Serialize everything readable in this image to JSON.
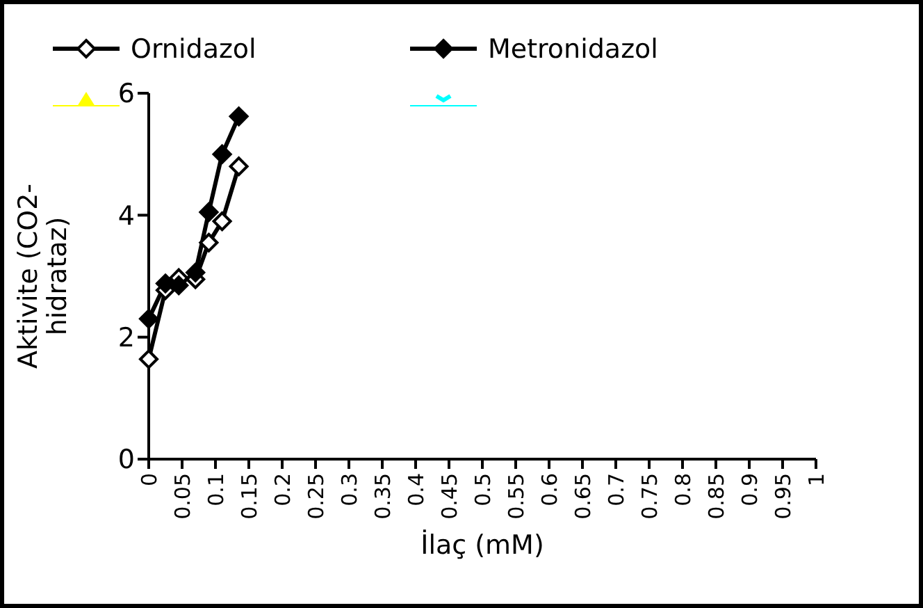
{
  "chart_data": {
    "type": "line",
    "xlabel": "İlaç (mM)",
    "ylabel": "Aktivite (CO2-hidrataz)",
    "xlim": [
      0,
      1
    ],
    "xticks": [
      0,
      {
        "value": 0.05,
        "label": "0.05"
      },
      {
        "value": 0.1,
        "label": "0.1"
      },
      {
        "value": 0.15,
        "label": "0.15"
      },
      {
        "value": 0.2,
        "label": "0.2"
      },
      {
        "value": 0.25,
        "label": "0.25"
      },
      {
        "value": 0.3,
        "label": "0.3"
      },
      {
        "value": 0.35,
        "label": "0.35"
      },
      {
        "value": 0.4,
        "label": "0.4"
      },
      {
        "value": 0.45,
        "label": "0.45"
      },
      {
        "value": 0.5,
        "label": "0.5"
      },
      {
        "value": 0.55,
        "label": "0.55"
      },
      {
        "value": 0.6,
        "label": "0.6"
      },
      {
        "value": 0.65,
        "label": "0.65"
      },
      {
        "value": 0.7,
        "label": "0.7"
      },
      {
        "value": 0.75,
        "label": "0.75"
      },
      {
        "value": 0.8,
        "label": "0.8"
      },
      {
        "value": 0.85,
        "label": "0.85"
      },
      {
        "value": 0.9,
        "label": "0.9"
      },
      {
        "value": 0.95,
        "label": "0.95"
      },
      1
    ],
    "ylim": [
      0,
      6
    ],
    "yticks": [
      0,
      2,
      4,
      6
    ],
    "grid": false,
    "legend": "top",
    "marker": "diamond",
    "line_style": "solid",
    "x": [
      0,
      0.025,
      0.045,
      0.07,
      0.09,
      0.11,
      0.135
    ],
    "series": [
      {
        "name": "Ornidazol",
        "color": "#000000",
        "colors": [
          "#ffffff",
          "#ffffff",
          "#ffffff",
          "#ffffff",
          "#ffffff",
          "#ffffff",
          "#ffffff"
        ],
        "values": [
          1.64,
          2.77,
          2.97,
          2.95,
          3.55,
          3.9,
          4.8
        ]
      },
      {
        "name": "Metronidazol",
        "color": "#000000",
        "values": [
          2.3,
          2.88,
          2.85,
          3.06,
          4.05,
          5.0,
          5.62
        ]
      },
      {
        "color": "#ffff00",
        "marker": "triangle",
        "values": [
          null,
          null,
          null,
          null,
          null,
          null,
          null
        ]
      },
      {
        "color": "#00ffff",
        "marker": "cross",
        "values": [
          null,
          null,
          null,
          null,
          null,
          null,
          null
        ]
      }
    ]
  }
}
